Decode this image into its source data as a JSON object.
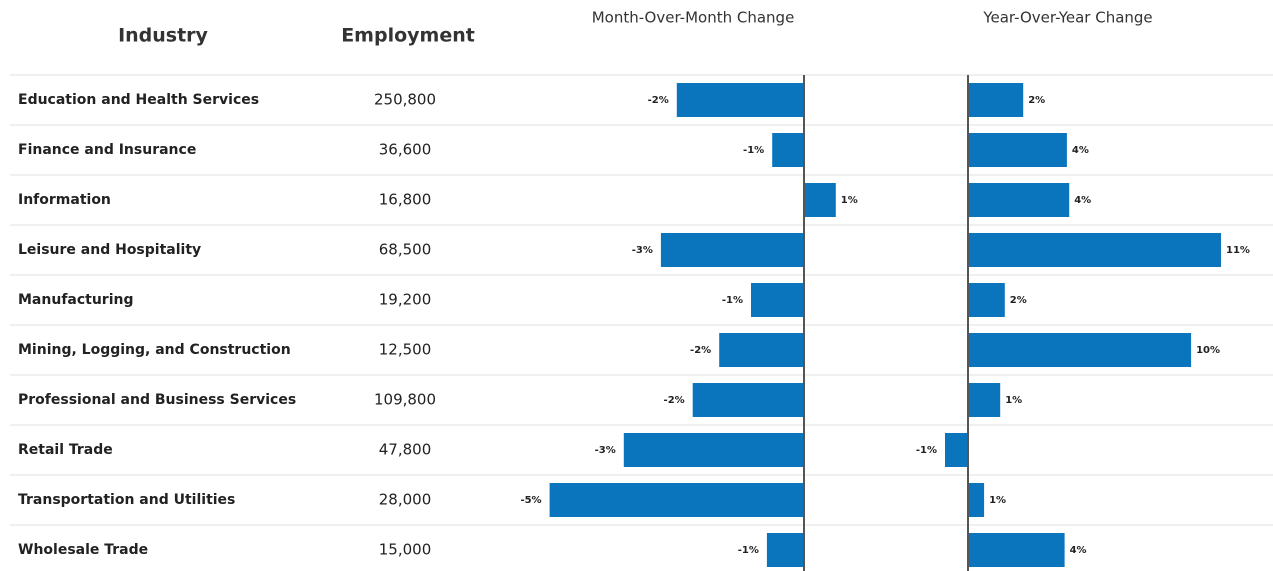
{
  "table": {
    "columns": [
      "Industry",
      "Employment",
      "Month-Over-Month Change",
      "Year-Over-Year Change"
    ],
    "color": "#0a74bd",
    "rows": [
      {
        "industry": "Education and Health Services",
        "employment": "250,800",
        "mom": -2.4,
        "mom_label": "-2%",
        "yoy": 2.4,
        "yoy_label": "2%"
      },
      {
        "industry": "Finance and Insurance",
        "employment": "36,600",
        "mom": -0.6,
        "mom_label": "-1%",
        "yoy": 4.3,
        "yoy_label": "4%"
      },
      {
        "industry": "Information",
        "employment": "16,800",
        "mom": 0.6,
        "mom_label": "1%",
        "yoy": 4.4,
        "yoy_label": "4%"
      },
      {
        "industry": "Leisure and Hospitality",
        "employment": "68,500",
        "mom": -2.7,
        "mom_label": "-3%",
        "yoy": 11.0,
        "yoy_label": "11%"
      },
      {
        "industry": "Manufacturing",
        "employment": "19,200",
        "mom": -1.0,
        "mom_label": "-1%",
        "yoy": 1.6,
        "yoy_label": "2%"
      },
      {
        "industry": "Mining, Logging, and Construction",
        "employment": "12,500",
        "mom": -1.6,
        "mom_label": "-2%",
        "yoy": 9.7,
        "yoy_label": "10%"
      },
      {
        "industry": "Professional and Business Services",
        "employment": "109,800",
        "mom": -2.1,
        "mom_label": "-2%",
        "yoy": 1.4,
        "yoy_label": "1%"
      },
      {
        "industry": "Retail Trade",
        "employment": "47,800",
        "mom": -3.4,
        "mom_label": "-3%",
        "yoy": -1.0,
        "yoy_label": "-1%"
      },
      {
        "industry": "Transportation and Utilities",
        "employment": "28,000",
        "mom": -4.8,
        "mom_label": "-5%",
        "yoy": 0.7,
        "yoy_label": "1%"
      },
      {
        "industry": "Wholesale Trade",
        "employment": "15,000",
        "mom": -0.7,
        "mom_label": "-1%",
        "yoy": 4.2,
        "yoy_label": "4%"
      }
    ]
  }
}
